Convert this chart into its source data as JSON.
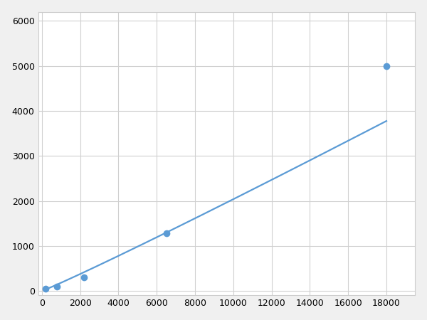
{
  "x": [
    200,
    800,
    2200,
    6500,
    18000
  ],
  "y": [
    50,
    100,
    310,
    1280,
    5000
  ],
  "line_color": "#5b9bd5",
  "marker_color": "#5b9bd5",
  "marker_size": 7,
  "line_width": 1.6,
  "xlim": [
    -200,
    19500
  ],
  "ylim": [
    -100,
    6200
  ],
  "xticks": [
    0,
    2000,
    4000,
    6000,
    8000,
    10000,
    12000,
    14000,
    16000,
    18000
  ],
  "yticks": [
    0,
    1000,
    2000,
    3000,
    4000,
    5000,
    6000
  ],
  "grid": true,
  "background_color": "#ffffff",
  "grid_color": "#d0d0d0",
  "figure_bg": "#f0f0f0"
}
